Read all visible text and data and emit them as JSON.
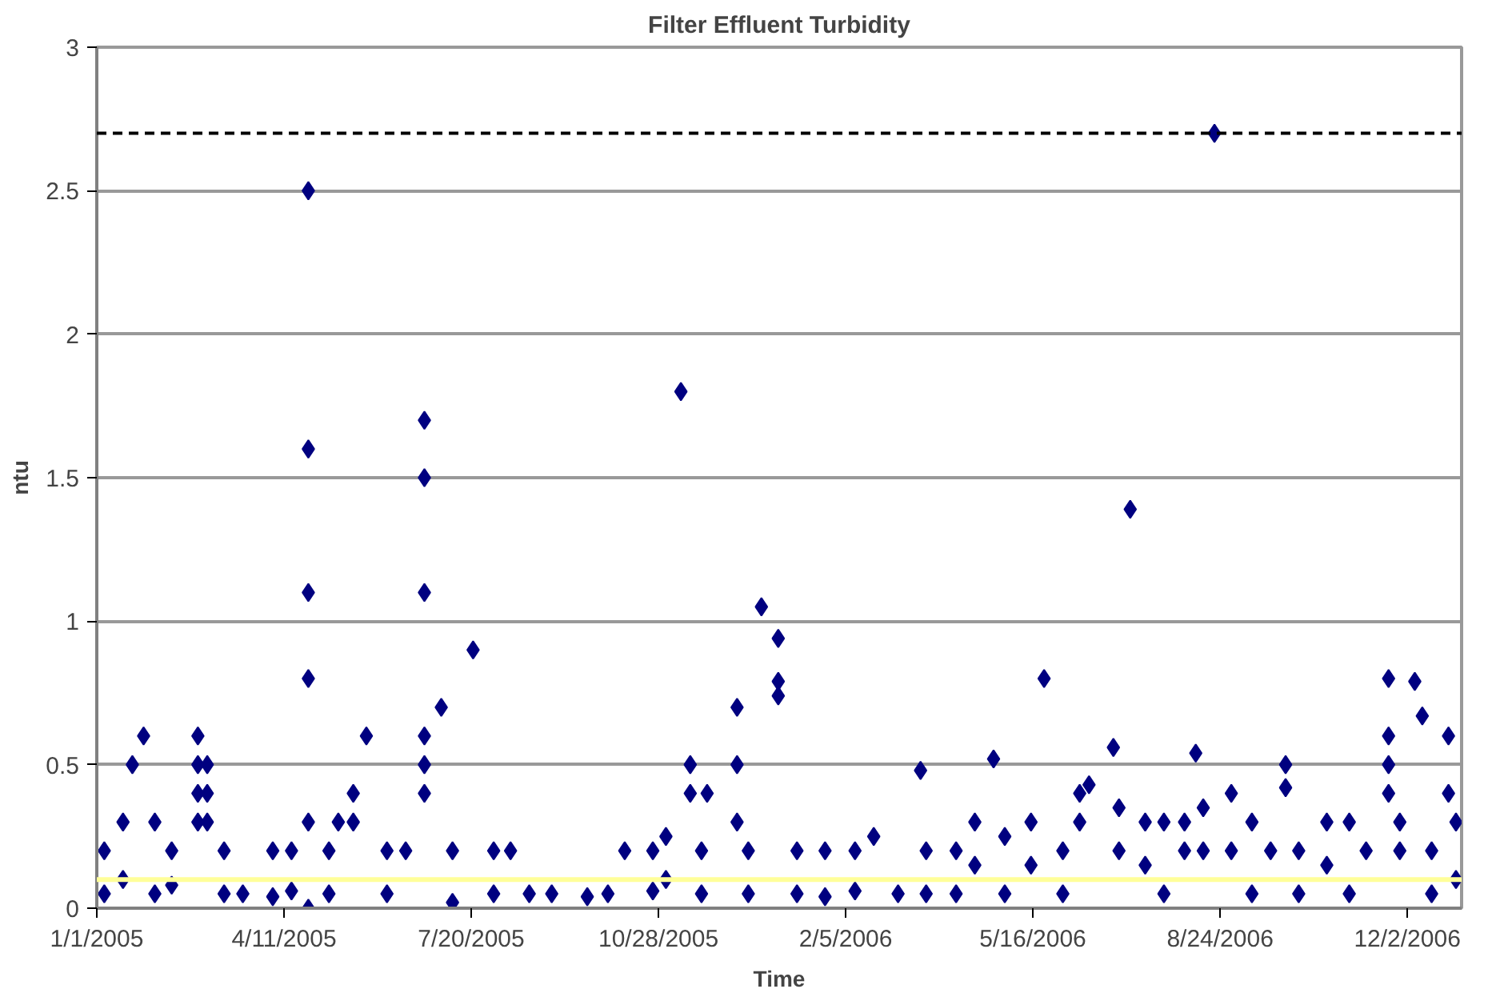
{
  "chart_data": {
    "type": "scatter",
    "title": "Filter Effluent Turbidity",
    "xlabel": "Time",
    "ylabel": "ntu",
    "xlim": [
      "2005-01-01",
      "2006-12-31"
    ],
    "xticks": [
      {
        "value": "2005-01-01",
        "label": "1/1/2005"
      },
      {
        "value": "2005-04-11",
        "label": "4/11/2005"
      },
      {
        "value": "2005-07-20",
        "label": "7/20/2005"
      },
      {
        "value": "2005-10-28",
        "label": "10/28/2005"
      },
      {
        "value": "2006-02-05",
        "label": "2/5/2006"
      },
      {
        "value": "2006-05-16",
        "label": "5/16/2006"
      },
      {
        "value": "2006-08-24",
        "label": "8/24/2006"
      },
      {
        "value": "2006-12-02",
        "label": "12/2/2006"
      }
    ],
    "ylim": [
      0,
      3
    ],
    "yticks": [
      0,
      0.5,
      1,
      1.5,
      2,
      2.5,
      3
    ],
    "grid": "y",
    "marker": "diamond",
    "ref_lines": [
      {
        "axis": "y",
        "value": 2.7,
        "label": null,
        "color": "#000000",
        "line_style": "dashed"
      },
      {
        "axis": "y",
        "value": 0.1,
        "label": null,
        "color": "#ffff99",
        "line_style": "solid"
      }
    ],
    "series": [
      {
        "color": "#000080",
        "x": [
          "2005-04-24",
          "2005-04-24",
          "2005-04-24",
          "2005-04-24",
          "2005-04-24",
          "2005-04-24",
          "2005-06-25",
          "2005-06-25",
          "2005-06-25",
          "2005-06-25",
          "2005-06-25",
          "2005-06-25",
          "2005-11-09",
          "2006-08-21",
          "2006-07-07",
          "2005-07-21",
          "2005-07-04",
          "2005-12-22",
          "2005-12-31",
          "2005-12-31",
          "2005-12-31",
          "2005-12-09",
          "2005-12-09",
          "2005-12-09",
          "2006-05-22",
          "2006-03-17",
          "2006-04-25",
          "2006-06-28",
          "2006-08-11",
          "2006-09-28",
          "2006-09-28",
          "2006-11-22",
          "2006-11-22",
          "2006-11-22",
          "2006-11-22",
          "2006-12-06",
          "2006-12-10",
          "2006-12-24",
          "2006-12-24",
          "2005-01-20",
          "2005-01-26",
          "2005-02-24",
          "2005-02-24",
          "2005-02-24",
          "2005-02-24",
          "2005-03-01",
          "2005-03-01",
          "2005-03-01",
          "2005-05-25",
          "2005-05-18",
          "2005-05-18",
          "2005-11-14",
          "2005-11-14",
          "2005-11-23",
          "2005-01-05",
          "2005-01-05",
          "2005-01-15",
          "2005-01-15",
          "2005-02-01",
          "2005-02-01",
          "2005-02-10",
          "2005-02-10",
          "2005-03-10",
          "2005-03-10",
          "2005-03-20",
          "2005-04-05",
          "2005-04-05",
          "2005-04-15",
          "2005-04-15",
          "2005-05-05",
          "2005-05-05",
          "2005-05-10",
          "2005-06-05",
          "2005-06-05",
          "2005-06-15",
          "2005-07-10",
          "2005-07-10",
          "2005-08-01",
          "2005-08-01",
          "2005-08-10",
          "2005-08-20",
          "2005-09-01",
          "2005-09-20",
          "2005-10-01",
          "2005-10-10",
          "2005-10-25",
          "2005-10-25",
          "2005-11-01",
          "2005-11-01",
          "2005-11-20",
          "2005-11-20",
          "2005-12-15",
          "2005-12-15",
          "2006-01-10",
          "2006-01-10",
          "2006-01-25",
          "2006-01-25",
          "2006-02-10",
          "2006-02-10",
          "2006-02-20",
          "2006-03-05",
          "2006-03-20",
          "2006-03-20",
          "2006-04-05",
          "2006-04-05",
          "2006-04-15",
          "2006-04-15",
          "2006-05-01",
          "2006-05-01",
          "2006-05-15",
          "2006-05-15",
          "2006-06-01",
          "2006-06-01",
          "2006-06-10",
          "2006-06-10",
          "2006-06-15",
          "2006-07-01",
          "2006-07-01",
          "2006-07-15",
          "2006-07-15",
          "2006-07-25",
          "2006-07-25",
          "2006-08-05",
          "2006-08-05",
          "2006-08-15",
          "2006-08-15",
          "2006-08-30",
          "2006-08-30",
          "2006-09-10",
          "2006-09-10",
          "2006-09-20",
          "2006-10-05",
          "2006-10-05",
          "2006-10-20",
          "2006-10-20",
          "2006-11-01",
          "2006-11-01",
          "2006-11-10",
          "2006-11-28",
          "2006-11-28",
          "2006-12-15",
          "2006-12-15",
          "2006-12-28",
          "2006-12-28"
        ],
        "values": [
          2.5,
          1.6,
          1.1,
          0.8,
          0.3,
          0.0,
          1.7,
          1.5,
          1.1,
          0.6,
          0.5,
          0.4,
          1.8,
          2.7,
          1.39,
          0.9,
          0.7,
          1.05,
          0.94,
          0.79,
          0.74,
          0.7,
          0.5,
          0.3,
          0.8,
          0.48,
          0.52,
          0.56,
          0.54,
          0.5,
          0.42,
          0.8,
          0.6,
          0.5,
          0.4,
          0.79,
          0.67,
          0.6,
          0.4,
          0.5,
          0.6,
          0.6,
          0.5,
          0.4,
          0.3,
          0.5,
          0.4,
          0.3,
          0.6,
          0.4,
          0.3,
          0.5,
          0.4,
          0.4,
          0.2,
          0.05,
          0.3,
          0.1,
          0.3,
          0.05,
          0.2,
          0.08,
          0.2,
          0.05,
          0.05,
          0.2,
          0.04,
          0.2,
          0.06,
          0.2,
          0.05,
          0.3,
          0.2,
          0.05,
          0.2,
          0.2,
          0.02,
          0.2,
          0.05,
          0.2,
          0.05,
          0.05,
          0.04,
          0.05,
          0.2,
          0.2,
          0.06,
          0.25,
          0.1,
          0.2,
          0.05,
          0.2,
          0.05,
          0.2,
          0.05,
          0.2,
          0.04,
          0.2,
          0.06,
          0.25,
          0.05,
          0.2,
          0.05,
          0.2,
          0.05,
          0.3,
          0.15,
          0.25,
          0.05,
          0.3,
          0.15,
          0.2,
          0.05,
          0.4,
          0.3,
          0.43,
          0.35,
          0.2,
          0.3,
          0.15,
          0.3,
          0.05,
          0.3,
          0.2,
          0.35,
          0.2,
          0.4,
          0.2,
          0.3,
          0.05,
          0.2,
          0.2,
          0.05,
          0.3,
          0.15,
          0.3,
          0.05,
          0.2,
          0.3,
          0.2,
          0.2,
          0.05,
          0.3,
          0.1
        ]
      }
    ]
  }
}
